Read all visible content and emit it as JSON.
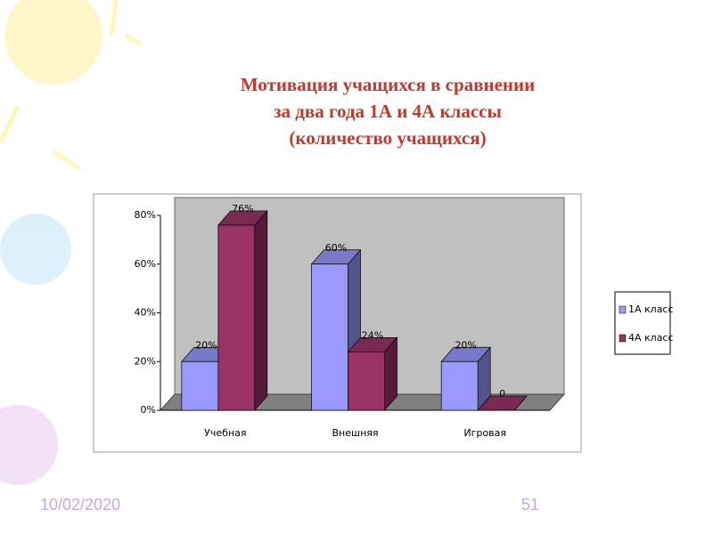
{
  "chart_data": {
    "type": "bar3d",
    "title": [
      "Мотивация учащихся  в сравнении",
      "за два года 1А и 4А классы",
      "(количество учащихся)"
    ],
    "categories": [
      "Учебная",
      "Внешняя",
      "Игровая"
    ],
    "series": [
      {
        "name": "1А класс",
        "color": "#9999ff",
        "values": [
          20,
          60,
          20
        ],
        "value_labels": [
          "20%",
          "60%",
          "20%"
        ]
      },
      {
        "name": "4А класс",
        "color": "#993366",
        "values": [
          76,
          24,
          0
        ],
        "value_labels": [
          "76%",
          "24%",
          "0"
        ]
      }
    ],
    "ylim": [
      0,
      80
    ],
    "yticks": [
      {
        "value": 0,
        "label": "0%"
      },
      {
        "value": 20,
        "label": "20%"
      },
      {
        "value": 40,
        "label": "40%"
      },
      {
        "value": 60,
        "label": "60%"
      },
      {
        "value": 80,
        "label": "80%"
      }
    ],
    "legend": "right"
  },
  "slide": {
    "date": "10/02/2020",
    "number": "51"
  }
}
